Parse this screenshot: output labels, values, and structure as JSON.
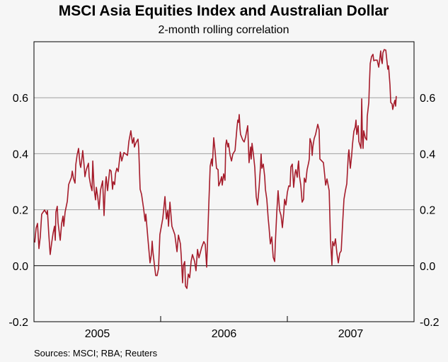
{
  "chart_data": {
    "type": "line",
    "title": "MSCI Asia Equities Index and Australian Dollar",
    "subtitle": "2-month rolling correlation",
    "source": "Sources: MSCI; RBA; Reuters",
    "xlabel": "",
    "ylabel": "",
    "xlim": [
      2005.0,
      2008.0
    ],
    "ylim": [
      -0.2,
      0.8
    ],
    "yticks": [
      -0.2,
      0.0,
      0.2,
      0.4,
      0.6
    ],
    "ytick_labels": [
      "-0.2",
      "0.0",
      "0.2",
      "0.4",
      "0.6"
    ],
    "xtick_labels": [
      {
        "label": "2005",
        "at": 2005.5
      },
      {
        "label": "2006",
        "at": 2006.5
      },
      {
        "label": "2007",
        "at": 2007.5
      }
    ],
    "xtick_marks": [
      2006.0,
      2007.0
    ],
    "grid": true,
    "color": "#a51c2b",
    "series": [
      {
        "name": "Correlation",
        "x": [
          2005.006,
          2005.017,
          2005.028,
          2005.039,
          2005.05,
          2005.061,
          2005.084,
          2005.101,
          2005.106,
          2005.117,
          2005.128,
          2005.14,
          2005.151,
          2005.162,
          2005.168,
          2005.173,
          2005.184,
          2005.19,
          2005.207,
          2005.218,
          2005.229,
          2005.235,
          2005.246,
          2005.263,
          2005.274,
          2005.296,
          2005.302,
          2005.313,
          2005.324,
          2005.33,
          2005.341,
          2005.352,
          2005.363,
          2005.369,
          2005.38,
          2005.385,
          2005.397,
          2005.402,
          2005.413,
          2005.43,
          2005.436,
          2005.447,
          2005.458,
          2005.464,
          2005.475,
          2005.486,
          2005.492,
          2005.503,
          2005.514,
          2005.525,
          2005.542,
          2005.553,
          2005.564,
          2005.57,
          2005.581,
          2005.598,
          2005.609,
          2005.62,
          2005.626,
          2005.637,
          2005.643,
          2005.654,
          2005.665,
          2005.682,
          2005.693,
          2005.71,
          2005.738,
          2005.749,
          2005.765,
          2005.777,
          2005.788,
          2005.793,
          2005.805,
          2005.821,
          2005.827,
          2005.838,
          2005.849,
          2005.866,
          2005.877,
          2005.883,
          2005.9,
          2005.916,
          2005.927,
          2005.933,
          2005.939,
          2005.95,
          2005.961,
          2005.972,
          2005.983,
          2005.994,
          2006.017,
          2006.034,
          2006.045,
          2006.056,
          2006.062,
          2006.073,
          2006.089,
          2006.112,
          2006.129,
          2006.14,
          2006.156,
          2006.162,
          2006.173,
          2006.179,
          2006.19,
          2006.196,
          2006.207,
          2006.218,
          2006.229,
          2006.24,
          2006.251,
          2006.268,
          2006.279,
          2006.291,
          2006.302,
          2006.324,
          2006.341,
          2006.352,
          2006.363,
          2006.38,
          2006.391,
          2006.402,
          2006.408,
          2006.419,
          2006.43,
          2006.441,
          2006.453,
          2006.458,
          2006.469,
          2006.481,
          2006.486,
          2006.497,
          2006.508,
          2006.514,
          2006.52,
          2006.531,
          2006.536,
          2006.548,
          2006.559,
          2006.57,
          2006.587,
          2006.592,
          2006.603,
          2006.609,
          2006.615,
          2006.62,
          2006.626,
          2006.631,
          2006.648,
          2006.659,
          2006.67,
          2006.687,
          2006.698,
          2006.71,
          2006.715,
          2006.721,
          2006.732,
          2006.743,
          2006.754,
          2006.765,
          2006.777,
          2006.788,
          2006.793,
          2006.799,
          2006.81,
          2006.821,
          2006.827,
          2006.838,
          2006.849,
          2006.855,
          2006.866,
          2006.877,
          2006.888,
          2006.9,
          2006.905,
          2006.916,
          2006.927,
          2006.939,
          2006.95,
          2006.961,
          2006.972,
          2006.978,
          2006.989,
          2007.0,
          2007.011,
          2007.022,
          2007.028,
          2007.039,
          2007.05,
          2007.061,
          2007.067,
          2007.078,
          2007.084,
          2007.089,
          2007.095,
          2007.106,
          2007.117,
          2007.128,
          2007.134,
          2007.145,
          2007.156,
          2007.168,
          2007.173,
          2007.179,
          2007.19,
          2007.196,
          2007.201,
          2007.212,
          2007.223,
          2007.24,
          2007.251,
          2007.257,
          2007.268,
          2007.285,
          2007.296,
          2007.302,
          2007.313,
          2007.33,
          2007.341,
          2007.352,
          2007.358,
          2007.369,
          2007.38,
          2007.391,
          2007.402,
          2007.414,
          2007.425,
          2007.436,
          2007.447,
          2007.458,
          2007.469,
          2007.481,
          2007.486,
          2007.497,
          2007.508,
          2007.514,
          2007.525,
          2007.536,
          2007.542,
          2007.548,
          2007.559,
          2007.564,
          2007.581,
          2007.587,
          2007.592,
          2007.598,
          2007.603,
          2007.615,
          2007.626,
          2007.631,
          2007.637,
          2007.643,
          2007.648,
          2007.654,
          2007.665,
          2007.676,
          2007.682,
          2007.693,
          2007.709,
          2007.721,
          2007.732,
          2007.737,
          2007.743,
          2007.749,
          2007.754,
          2007.765,
          2007.777,
          2007.788,
          2007.793,
          2007.799,
          2007.81,
          2007.816,
          2007.827,
          2007.832,
          2007.844,
          2007.849,
          2007.855,
          2007.86
        ],
        "y": [
          0.083,
          0.134,
          0.151,
          0.061,
          0.103,
          0.184,
          0.199,
          0.184,
          0.197,
          0.114,
          0.04,
          0.083,
          0.116,
          0.141,
          0.091,
          0.192,
          0.212,
          0.154,
          0.091,
          0.149,
          0.177,
          0.141,
          0.192,
          0.23,
          0.29,
          0.316,
          0.338,
          0.31,
          0.295,
          0.361,
          0.396,
          0.419,
          0.363,
          0.351,
          0.389,
          0.411,
          0.351,
          0.318,
          0.343,
          0.366,
          0.318,
          0.288,
          0.268,
          0.374,
          0.273,
          0.235,
          0.28,
          0.247,
          0.202,
          0.27,
          0.303,
          0.179,
          0.293,
          0.318,
          0.268,
          0.343,
          0.338,
          0.273,
          0.3,
          0.29,
          0.328,
          0.348,
          0.336,
          0.406,
          0.374,
          0.404,
          0.394,
          0.444,
          0.482,
          0.437,
          0.457,
          0.424,
          0.439,
          0.452,
          0.419,
          0.273,
          0.255,
          0.202,
          0.159,
          0.184,
          0.093,
          0.01,
          0.04,
          0.088,
          0.05,
          0.005,
          -0.035,
          -0.035,
          -0.01,
          0.111,
          0.169,
          0.247,
          0.167,
          0.197,
          0.141,
          0.227,
          0.141,
          0.111,
          0.05,
          0.109,
          0.078,
          0.038,
          -0.061,
          0.0,
          0.015,
          -0.073,
          -0.081,
          -0.03,
          -0.043,
          0.015,
          0.04,
          0.015,
          -0.018,
          0.058,
          0.028,
          0.066,
          0.086,
          0.076,
          -0.005,
          0.217,
          0.356,
          0.381,
          0.356,
          0.457,
          0.406,
          0.348,
          0.343,
          0.285,
          0.298,
          0.318,
          0.288,
          0.328,
          0.305,
          0.432,
          0.449,
          0.424,
          0.437,
          0.394,
          0.374,
          0.399,
          0.411,
          0.439,
          0.495,
          0.52,
          0.512,
          0.54,
          0.49,
          0.469,
          0.449,
          0.442,
          0.459,
          0.5,
          0.368,
          0.424,
          0.381,
          0.437,
          0.399,
          0.351,
          0.247,
          0.217,
          0.28,
          0.356,
          0.399,
          0.348,
          0.363,
          0.318,
          0.273,
          0.237,
          0.167,
          0.141,
          0.078,
          0.103,
          0.03,
          0.015,
          0.078,
          0.187,
          0.268,
          0.197,
          0.179,
          0.136,
          0.192,
          0.237,
          0.217,
          0.262,
          0.285,
          0.283,
          0.353,
          0.363,
          0.28,
          0.331,
          0.343,
          0.316,
          0.356,
          0.374,
          0.323,
          0.288,
          0.227,
          0.237,
          0.313,
          0.298,
          0.343,
          0.368,
          0.381,
          0.454,
          0.437,
          0.394,
          0.424,
          0.454,
          0.469,
          0.505,
          0.485,
          0.381,
          0.376,
          0.368,
          0.318,
          0.288,
          0.31,
          0.268,
          0.091,
          0.003,
          0.086,
          0.071,
          0.096,
          0.045,
          0.01,
          0.045,
          0.053,
          0.146,
          0.237,
          0.268,
          0.293,
          0.394,
          0.414,
          0.348,
          0.394,
          0.432,
          0.48,
          0.495,
          0.52,
          0.469,
          0.5,
          0.444,
          0.419,
          0.596,
          0.457,
          0.419,
          0.482,
          0.457,
          0.449,
          0.533,
          0.558,
          0.583,
          0.651,
          0.722,
          0.747,
          0.755,
          0.732,
          0.734,
          0.734,
          0.709,
          0.747,
          0.767,
          0.734,
          0.722,
          0.76,
          0.772,
          0.77,
          0.722,
          0.702,
          0.714,
          0.646,
          0.583,
          0.578,
          0.558,
          0.583,
          0.591,
          0.57,
          0.606
        ]
      }
    ]
  }
}
